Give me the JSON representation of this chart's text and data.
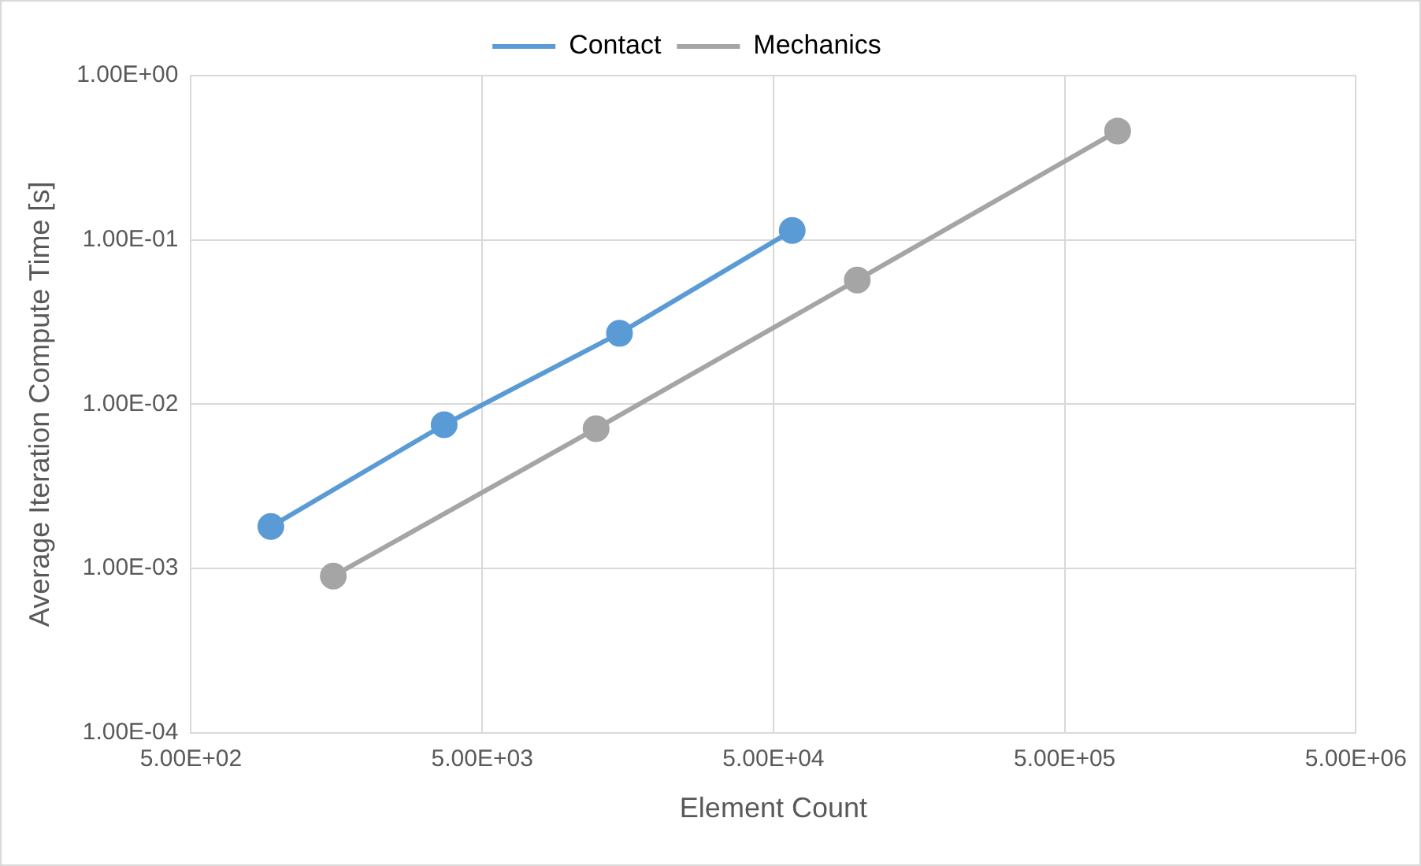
{
  "chart_data": {
    "type": "line",
    "xlabel": "Element Count",
    "ylabel": "Average Iteration Compute Time [s]",
    "log": "xy",
    "grid": true,
    "legend": "top",
    "marker": "circle",
    "line_style": "solid",
    "xlim": [
      500,
      5000000
    ],
    "ylim": [
      0.0001,
      1
    ],
    "xticks": [
      {
        "value": 500,
        "label": "5.00E+02"
      },
      {
        "value": 5000,
        "label": "5.00E+03"
      },
      {
        "value": 50000,
        "label": "5.00E+04"
      },
      {
        "value": 500000,
        "label": "5.00E+05"
      },
      {
        "value": 5000000,
        "label": "5.00E+06"
      }
    ],
    "yticks": [
      {
        "value": 0.0001,
        "label": "1.00E-04"
      },
      {
        "value": 0.001,
        "label": "1.00E-03"
      },
      {
        "value": 0.01,
        "label": "1.00E-02"
      },
      {
        "value": 0.1,
        "label": "1.00E-01"
      },
      {
        "value": 1,
        "label": "1.00E+00"
      }
    ],
    "series": [
      {
        "name": "Contact",
        "color": "#5b9bd5",
        "x": [
          940,
          3700,
          14800,
          58000
        ],
        "values": [
          0.0018,
          0.0075,
          0.027,
          0.114
        ]
      },
      {
        "name": "Mechanics",
        "color": "#a5a5a5",
        "x": [
          1540,
          12300,
          97000,
          760000
        ],
        "values": [
          0.0009,
          0.0071,
          0.057,
          0.46
        ]
      }
    ]
  }
}
